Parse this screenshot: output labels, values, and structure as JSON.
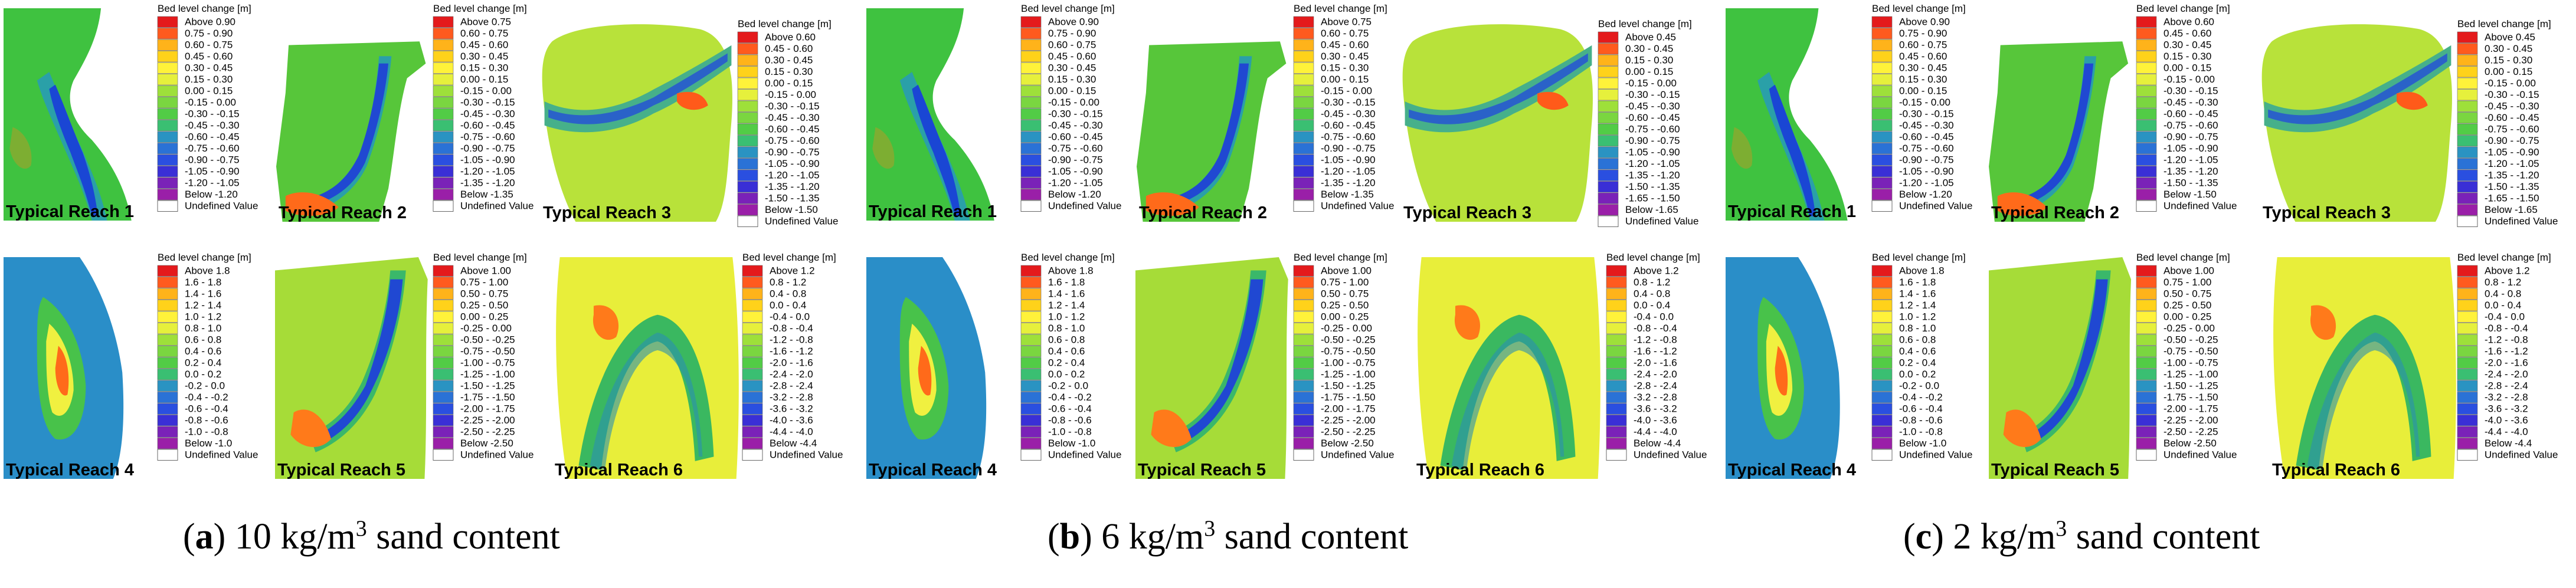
{
  "legend_title": "Bed level change [m]",
  "undefined_label": "Undefined Value",
  "legend_colors": [
    "#e41a1c",
    "#ff5a1e",
    "#ff8c1a",
    "#ffb31a",
    "#ffd21a",
    "#fff23a",
    "#e6f03c",
    "#c2e83a",
    "#9ee03a",
    "#7ad640",
    "#52cc46",
    "#3abf72",
    "#2fb0a0",
    "#2a93c2",
    "#2a72d6",
    "#2a4fe0",
    "#3a2fd6",
    "#5a28c8",
    "#7a22b8",
    "#9a1fa8"
  ],
  "reach_colors": {
    "1": {
      "base": "#3fc240",
      "accent": "#1a46d4",
      "accent2": "#2aa0a8",
      "hot": "#f28a1a"
    },
    "2": {
      "base": "#57c63a",
      "accent": "#2048d2",
      "accent2": "#2aa0a8",
      "hot": "#ff6a1a"
    },
    "3": {
      "base": "#b8e23a",
      "accent": "#2a62c8",
      "accent2": "#46b08a",
      "hot": "#ff5a1a"
    },
    "4": {
      "base": "#2a8ec8",
      "accent": "#f0f040",
      "accent2": "#48c24a",
      "hot": "#ff6a1a"
    },
    "5": {
      "base": "#a6dc38",
      "accent": "#2048d2",
      "accent2": "#3ab86a",
      "hot": "#ff7a1a"
    },
    "6": {
      "base": "#e8ee3a",
      "accent": "#3ab860",
      "accent2": "#2a90b0",
      "hot": "#ff7a1a"
    }
  },
  "chart_data": [
    {
      "type": "heatmap",
      "caption": {
        "letter": "a",
        "text": "10 kg/m",
        "sup": "3",
        "suffix": " sand content"
      },
      "panels": [
        {
          "reach": "1",
          "label": "Typical Reach 1",
          "legend": [
            "Above 0.90",
            "0.75 - 0.90",
            "0.60 - 0.75",
            "0.45 - 0.60",
            "0.30 - 0.45",
            "0.15 - 0.30",
            "0.00 - 0.15",
            "-0.15 - 0.00",
            "-0.30 - -0.15",
            "-0.45 - -0.30",
            "-0.60 - -0.45",
            "-0.75 - -0.60",
            "-0.90 - -0.75",
            "-1.05 - -0.90",
            "-1.20 - -1.05",
            "Below -1.20"
          ]
        },
        {
          "reach": "2",
          "label": "Typical Reach 2",
          "legend": [
            "Above 0.75",
            "0.60 - 0.75",
            "0.45 - 0.60",
            "0.30 - 0.45",
            "0.15 - 0.30",
            "0.00 - 0.15",
            "-0.15 - 0.00",
            "-0.30 - -0.15",
            "-0.45 - -0.30",
            "-0.60 - -0.45",
            "-0.75 - -0.60",
            "-0.90 - -0.75",
            "-1.05 - -0.90",
            "-1.20 - -1.05",
            "-1.35 - -1.20",
            "Below -1.35"
          ]
        },
        {
          "reach": "3",
          "label": "Typical Reach 3",
          "legend": [
            "Above 0.60",
            "0.45 - 0.60",
            "0.30 - 0.45",
            "0.15 - 0.30",
            "0.00 - 0.15",
            "-0.15 - 0.00",
            "-0.30 - -0.15",
            "-0.45 - -0.30",
            "-0.60 - -0.45",
            "-0.75 - -0.60",
            "-0.90 - -0.75",
            "-1.05 - -0.90",
            "-1.20 - -1.05",
            "-1.35 - -1.20",
            "-1.50 - -1.35",
            "Below -1.50"
          ]
        },
        {
          "reach": "4",
          "label": "Typical Reach 4",
          "legend": [
            "Above 1.8",
            "1.6 - 1.8",
            "1.4 - 1.6",
            "1.2 - 1.4",
            "1.0 - 1.2",
            "0.8 - 1.0",
            "0.6 - 0.8",
            "0.4 - 0.6",
            "0.2 - 0.4",
            "0.0 - 0.2",
            "-0.2 - 0.0",
            "-0.4 - -0.2",
            "-0.6 - -0.4",
            "-0.8 - -0.6",
            "-1.0 - -0.8",
            "Below -1.0"
          ]
        },
        {
          "reach": "5",
          "label": "Typical Reach 5",
          "legend": [
            "Above 1.00",
            "0.75 - 1.00",
            "0.50 - 0.75",
            "0.25 - 0.50",
            "0.00 - 0.25",
            "-0.25 - 0.00",
            "-0.50 - -0.25",
            "-0.75 - -0.50",
            "-1.00 - -0.75",
            "-1.25 - -1.00",
            "-1.50 - -1.25",
            "-1.75 - -1.50",
            "-2.00 - -1.75",
            "-2.25 - -2.00",
            "-2.50 - -2.25",
            "Below -2.50"
          ]
        },
        {
          "reach": "6",
          "label": "Typical Reach 6",
          "legend": [
            "Above 1.2",
            "0.8 - 1.2",
            "0.4 - 0.8",
            "0.0 - 0.4",
            "-0.4 - 0.0",
            "-0.8 - -0.4",
            "-1.2 - -0.8",
            "-1.6 - -1.2",
            "-2.0 - -1.6",
            "-2.4 - -2.0",
            "-2.8 - -2.4",
            "-3.2 - -2.8",
            "-3.6 - -3.2",
            "-4.0 - -3.6",
            "-4.4 - -4.0",
            "Below -4.4"
          ]
        }
      ]
    },
    {
      "type": "heatmap",
      "caption": {
        "letter": "b",
        "text": "6 kg/m",
        "sup": "3",
        "suffix": " sand content"
      },
      "panels": [
        {
          "reach": "1",
          "label": "Typical Reach 1",
          "legend": [
            "Above 0.90",
            "0.75 - 0.90",
            "0.60 - 0.75",
            "0.45 - 0.60",
            "0.30 - 0.45",
            "0.15 - 0.30",
            "0.00 - 0.15",
            "-0.15 - 0.00",
            "-0.30 - -0.15",
            "-0.45 - -0.30",
            "-0.60 - -0.45",
            "-0.75 - -0.60",
            "-0.90 - -0.75",
            "-1.05 - -0.90",
            "-1.20 - -1.05",
            "Below -1.20"
          ]
        },
        {
          "reach": "2",
          "label": "Typical Reach 2",
          "legend": [
            "Above 0.75",
            "0.60 - 0.75",
            "0.45 - 0.60",
            "0.30 - 0.45",
            "0.15 - 0.30",
            "0.00 - 0.15",
            "-0.15 - 0.00",
            "-0.30 - -0.15",
            "-0.45 - -0.30",
            "-0.60 - -0.45",
            "-0.75 - -0.60",
            "-0.90 - -0.75",
            "-1.05 - -0.90",
            "-1.20 - -1.05",
            "-1.35 - -1.20",
            "Below -1.35"
          ]
        },
        {
          "reach": "3",
          "label": "Typical Reach 3",
          "legend": [
            "Above 0.45",
            "0.30 - 0.45",
            "0.15 - 0.30",
            "0.00 - 0.15",
            "-0.15 - 0.00",
            "-0.30 - -0.15",
            "-0.45 - -0.30",
            "-0.60 - -0.45",
            "-0.75 - -0.60",
            "-0.90 - -0.75",
            "-1.05 - -0.90",
            "-1.20 - -1.05",
            "-1.35 - -1.20",
            "-1.50 - -1.35",
            "-1.65 - -1.50",
            "Below -1.65"
          ]
        },
        {
          "reach": "4",
          "label": "Typical Reach 4",
          "legend": [
            "Above 1.8",
            "1.6 - 1.8",
            "1.4 - 1.6",
            "1.2 - 1.4",
            "1.0 - 1.2",
            "0.8 - 1.0",
            "0.6 - 0.8",
            "0.4 - 0.6",
            "0.2 - 0.4",
            "0.0 - 0.2",
            "-0.2 - 0.0",
            "-0.4 - -0.2",
            "-0.6 - -0.4",
            "-0.8 - -0.6",
            "-1.0 - -0.8",
            "Below -1.0"
          ]
        },
        {
          "reach": "5",
          "label": "Typical Reach 5",
          "legend": [
            "Above 1.00",
            "0.75 - 1.00",
            "0.50 - 0.75",
            "0.25 - 0.50",
            "0.00 - 0.25",
            "-0.25 - 0.00",
            "-0.50 - -0.25",
            "-0.75 - -0.50",
            "-1.00 - -0.75",
            "-1.25 - -1.00",
            "-1.50 - -1.25",
            "-1.75 - -1.50",
            "-2.00 - -1.75",
            "-2.25 - -2.00",
            "-2.50 - -2.25",
            "Below -2.50"
          ]
        },
        {
          "reach": "6",
          "label": "Typical Reach 6",
          "legend": [
            "Above 1.2",
            "0.8 - 1.2",
            "0.4 - 0.8",
            "0.0 - 0.4",
            "-0.4 - 0.0",
            "-0.8 - -0.4",
            "-1.2 - -0.8",
            "-1.6 - -1.2",
            "-2.0 - -1.6",
            "-2.4 - -2.0",
            "-2.8 - -2.4",
            "-3.2 - -2.8",
            "-3.6 - -3.2",
            "-4.0 - -3.6",
            "-4.4 - -4.0",
            "Below -4.4"
          ]
        }
      ]
    },
    {
      "type": "heatmap",
      "caption": {
        "letter": "c",
        "text": "2 kg/m",
        "sup": "3",
        "suffix": " sand content"
      },
      "panels": [
        {
          "reach": "1",
          "label": "Typical Reach 1",
          "legend": [
            "Above 0.90",
            "0.75 - 0.90",
            "0.60 - 0.75",
            "0.45 - 0.60",
            "0.30 - 0.45",
            "0.15 - 0.30",
            "0.00 - 0.15",
            "-0.15 - 0.00",
            "-0.30 - -0.15",
            "-0.45 - -0.30",
            "-0.60 - -0.45",
            "-0.75 - -0.60",
            "-0.90 - -0.75",
            "-1.05 - -0.90",
            "-1.20 - -1.05",
            "Below -1.20"
          ]
        },
        {
          "reach": "2",
          "label": "Typical Reach 2",
          "legend": [
            "Above 0.60",
            "0.45 - 0.60",
            "0.30 - 0.45",
            "0.15 - 0.30",
            "0.00 - 0.15",
            "-0.15 - 0.00",
            "-0.30 - -0.15",
            "-0.45 - -0.30",
            "-0.60 - -0.45",
            "-0.75 - -0.60",
            "-0.90 - -0.75",
            "-1.05 - -0.90",
            "-1.20 - -1.05",
            "-1.35 - -1.20",
            "-1.50 - -1.35",
            "Below -1.50"
          ]
        },
        {
          "reach": "3",
          "label": "Typical Reach 3",
          "legend": [
            "Above 0.45",
            "0.30 - 0.45",
            "0.15 - 0.30",
            "0.00 - 0.15",
            "-0.15 - 0.00",
            "-0.30 - -0.15",
            "-0.45 - -0.30",
            "-0.60 - -0.45",
            "-0.75 - -0.60",
            "-0.90 - -0.75",
            "-1.05 - -0.90",
            "-1.20 - -1.05",
            "-1.35 - -1.20",
            "-1.50 - -1.35",
            "-1.65 - -1.50",
            "Below -1.65"
          ]
        },
        {
          "reach": "4",
          "label": "Typical Reach 4",
          "legend": [
            "Above 1.8",
            "1.6 - 1.8",
            "1.4 - 1.6",
            "1.2 - 1.4",
            "1.0 - 1.2",
            "0.8 - 1.0",
            "0.6 - 0.8",
            "0.4 - 0.6",
            "0.2 - 0.4",
            "0.0 - 0.2",
            "-0.2 - 0.0",
            "-0.4 - -0.2",
            "-0.6 - -0.4",
            "-0.8 - -0.6",
            "-1.0 - -0.8",
            "Below -1.0"
          ]
        },
        {
          "reach": "5",
          "label": "Typical Reach 5",
          "legend": [
            "Above 1.00",
            "0.75 - 1.00",
            "0.50 - 0.75",
            "0.25 - 0.50",
            "0.00 - 0.25",
            "-0.25 - 0.00",
            "-0.50 - -0.25",
            "-0.75 - -0.50",
            "-1.00 - -0.75",
            "-1.25 - -1.00",
            "-1.50 - -1.25",
            "-1.75 - -1.50",
            "-2.00 - -1.75",
            "-2.25 - -2.00",
            "-2.50 - -2.25",
            "Below -2.50"
          ]
        },
        {
          "reach": "6",
          "label": "Typical Reach 6",
          "legend": [
            "Above 1.2",
            "0.8 - 1.2",
            "0.4 - 0.8",
            "0.0 - 0.4",
            "-0.4 - 0.0",
            "-0.8 - -0.4",
            "-1.2 - -0.8",
            "-1.6 - -1.2",
            "-2.0 - -1.6",
            "-2.4 - -2.0",
            "-2.8 - -2.4",
            "-3.2 - -2.8",
            "-3.6 - -3.2",
            "-4.0 - -3.6",
            "-4.4 - -4.0",
            "Below -4.4"
          ]
        }
      ]
    }
  ]
}
